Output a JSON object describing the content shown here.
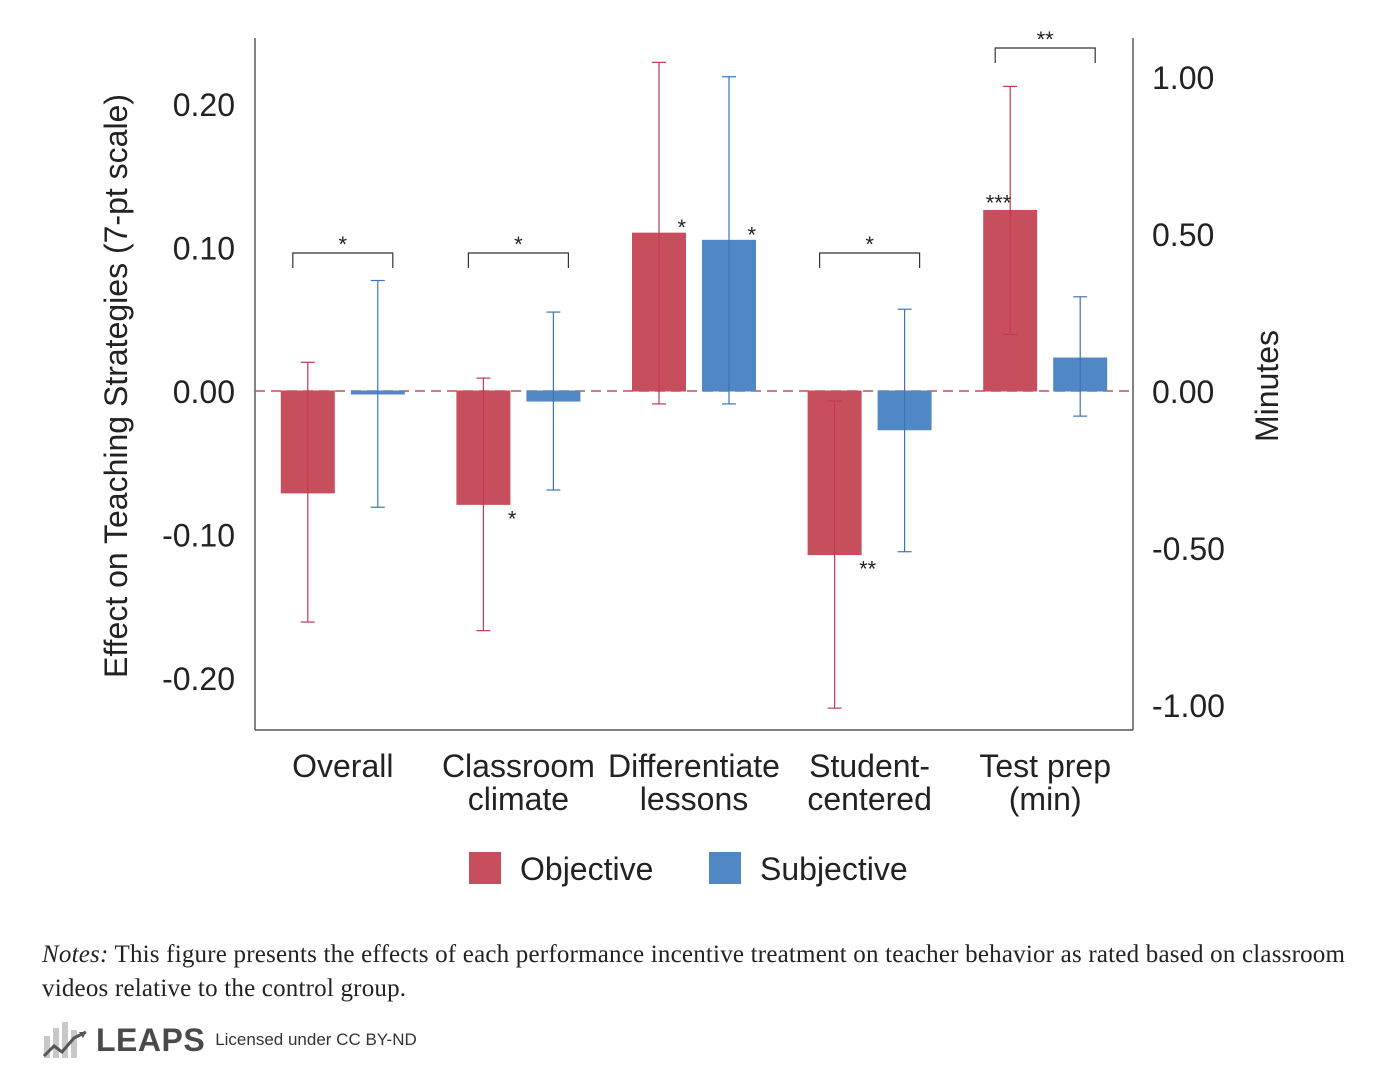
{
  "chart_data": {
    "type": "bar",
    "ylabel": "Effect on Teaching Strategies (7-pt scale)",
    "y2label": "Minutes",
    "ylim": [
      -0.235,
      0.24
    ],
    "y2lim": [
      -1.0,
      1.0
    ],
    "yticks": [
      "0.20",
      "0.10",
      "0.00",
      "-0.10",
      "-0.20"
    ],
    "ytick_values": [
      0.2,
      0.1,
      0.0,
      -0.1,
      -0.2
    ],
    "y2ticks": [
      "1.00",
      "0.50",
      "0.00",
      "-0.50",
      "-1.00"
    ],
    "y2tick_values": [
      1.0,
      0.5,
      0.0,
      -0.5,
      -1.0
    ],
    "categories": [
      {
        "line1": "Overall",
        "line2": ""
      },
      {
        "line1": "Classroom",
        "line2": "climate"
      },
      {
        "line1": "Differentiate",
        "line2": "lessons"
      },
      {
        "line1": "Student-",
        "line2": "centered"
      },
      {
        "line1": "Test prep",
        "line2": "(min)"
      }
    ],
    "right_axis_category_index": 4,
    "series": [
      {
        "name": "Objective",
        "color": "#c74f5d",
        "values": [
          -0.071,
          -0.079,
          0.11,
          -0.114,
          0.575
        ],
        "ci_low": [
          -0.161,
          -0.167,
          -0.009,
          -0.221,
          0.18
        ],
        "ci_high": [
          0.02,
          0.009,
          0.229,
          -0.007,
          0.97
        ],
        "sig": [
          "",
          "*",
          "*",
          "**",
          "***"
        ]
      },
      {
        "name": "Subjective",
        "color": "#5088c5",
        "values": [
          -0.002,
          -0.007,
          0.105,
          -0.027,
          0.105
        ],
        "ci_low": [
          -0.081,
          -0.069,
          -0.009,
          -0.112,
          -0.08
        ],
        "ci_high": [
          0.077,
          0.055,
          0.219,
          0.057,
          0.3
        ],
        "sig": [
          "",
          "",
          "*",
          "",
          ""
        ]
      }
    ],
    "comparison_sig": [
      "*",
      "*",
      "",
      "*",
      "**"
    ],
    "legend_position": "bottom-center"
  },
  "notes": {
    "label": "Notes:",
    "text": " This figure presents the effects of each performance incentive treatment on teacher behavior as rated based on classroom videos relative to the control group."
  },
  "footer": {
    "brand": "LEAPS",
    "license": "Licensed under CC BY-ND"
  }
}
